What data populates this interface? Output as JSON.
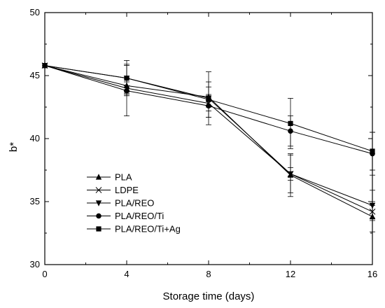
{
  "chart_data": {
    "type": "line",
    "xlabel": "Storage time (days)",
    "ylabel": "b*",
    "x": [
      0,
      4,
      8,
      12,
      16
    ],
    "xlim": [
      0,
      16
    ],
    "ylim": [
      30,
      50
    ],
    "xticks": [
      "0",
      "4",
      "8",
      "12",
      "16"
    ],
    "yticks": [
      "30",
      "35",
      "40",
      "45",
      "50"
    ],
    "grid": false,
    "legend_position": "bottom-left",
    "series": [
      {
        "name": "PLA",
        "marker": "triangle-up",
        "values": [
          45.8,
          44.2,
          43.3,
          37.1,
          33.8
        ],
        "errors": [
          0,
          0.6,
          0.8,
          1.7,
          1.2
        ]
      },
      {
        "name": "LDPE",
        "marker": "x",
        "values": [
          45.8,
          44.0,
          42.8,
          37.2,
          34.2
        ],
        "errors": [
          0,
          0.5,
          0.6,
          0.5,
          0.5
        ]
      },
      {
        "name": "PLA/REO",
        "marker": "triangle-down",
        "values": [
          45.8,
          44.8,
          43.2,
          37.2,
          34.7
        ],
        "errors": [
          0,
          1.4,
          2.1,
          1.5,
          1.2
        ]
      },
      {
        "name": "PLA/REO/Ti",
        "marker": "circle",
        "values": [
          45.8,
          43.8,
          42.6,
          40.6,
          38.8
        ],
        "errors": [
          0,
          2.0,
          0.9,
          1.2,
          1.7
        ]
      },
      {
        "name": "PLA/REO/Ti+Ag",
        "marker": "square",
        "values": [
          45.8,
          44.8,
          43.1,
          41.2,
          39.0
        ],
        "errors": [
          0,
          1.1,
          1.4,
          2.0,
          1.5
        ]
      }
    ]
  }
}
